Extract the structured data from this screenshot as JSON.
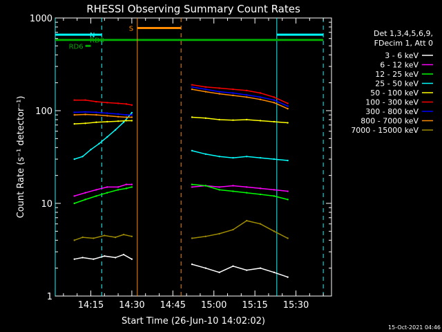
{
  "chart_data": {
    "type": "line",
    "title": "RHESSI Observing Summary Count Rates",
    "xlabel": "Start Time (26-Jun-10 14:02:02)",
    "ylabel": "Count Rate (s⁻¹ detector⁻¹)",
    "y_scale": "log",
    "ylim": [
      1,
      1000
    ],
    "xlim": [
      "14:02",
      "15:43"
    ],
    "x_ticks": [
      "14:15",
      "14:30",
      "14:45",
      "15:00",
      "15:15",
      "15:30"
    ],
    "y_ticks": [
      "1",
      "10",
      "100",
      "1000"
    ],
    "grid": false,
    "legend": {
      "position": "right",
      "header": [
        "Det 1,3,4,5,6,9,",
        "FDecim 1, Att 0"
      ]
    },
    "series": [
      {
        "name": "3 - 6 keV",
        "color": "#ffffff",
        "segments": [
          {
            "x": [
              "14:09",
              "14:12",
              "14:16",
              "14:20",
              "14:24",
              "14:27",
              "14:30"
            ],
            "y": [
              2.5,
              2.6,
              2.5,
              2.7,
              2.6,
              2.8,
              2.5
            ]
          },
          {
            "x": [
              "14:52",
              "14:57",
              "15:02",
              "15:07",
              "15:12",
              "15:17",
              "15:22",
              "15:27"
            ],
            "y": [
              2.2,
              2.0,
              1.8,
              2.1,
              1.9,
              2.0,
              1.8,
              1.6
            ]
          }
        ]
      },
      {
        "name": "6 - 12 keV",
        "color": "#ff00ff",
        "segments": [
          {
            "x": [
              "14:09",
              "14:13",
              "14:17",
              "14:21",
              "14:25",
              "14:28",
              "14:30"
            ],
            "y": [
              12,
              13,
              14,
              15,
              15,
              16,
              16
            ]
          },
          {
            "x": [
              "14:52",
              "14:57",
              "15:02",
              "15:07",
              "15:12",
              "15:17",
              "15:22",
              "15:27"
            ],
            "y": [
              15,
              15.5,
              15,
              15.5,
              15,
              14.5,
              14,
              13.5
            ]
          }
        ]
      },
      {
        "name": "12 - 25 keV",
        "color": "#00ff00",
        "segments": [
          {
            "x": [
              "14:09",
              "14:13",
              "14:17",
              "14:21",
              "14:25",
              "14:28",
              "14:30"
            ],
            "y": [
              10,
              11,
              12,
              13,
              14,
              14.5,
              15
            ]
          },
          {
            "x": [
              "14:52",
              "14:57",
              "15:02",
              "15:07",
              "15:12",
              "15:17",
              "15:22",
              "15:27"
            ],
            "y": [
              16,
              15.5,
              14,
              13.5,
              13,
              12.5,
              12,
              11
            ]
          }
        ]
      },
      {
        "name": "25 - 50 keV",
        "color": "#00ffff",
        "segments": [
          {
            "x": [
              "14:09",
              "14:12",
              "14:15",
              "14:18",
              "14:21",
              "14:24",
              "14:27",
              "14:30"
            ],
            "y": [
              30,
              32,
              38,
              44,
              52,
              62,
              75,
              95
            ]
          },
          {
            "x": [
              "14:52",
              "14:57",
              "15:02",
              "15:07",
              "15:12",
              "15:17",
              "15:22",
              "15:27"
            ],
            "y": [
              37,
              34,
              32,
              31,
              32,
              31,
              30,
              29
            ]
          }
        ]
      },
      {
        "name": "50 - 100 keV",
        "color": "#ffff00",
        "segments": [
          {
            "x": [
              "14:09",
              "14:13",
              "14:17",
              "14:21",
              "14:25",
              "14:28",
              "14:30"
            ],
            "y": [
              72,
              73,
              75,
              76,
              77,
              78,
              78
            ]
          },
          {
            "x": [
              "14:52",
              "14:57",
              "15:02",
              "15:07",
              "15:12",
              "15:17",
              "15:22",
              "15:27"
            ],
            "y": [
              85,
              83,
              80,
              79,
              80,
              78,
              76,
              74
            ]
          }
        ]
      },
      {
        "name": "100 - 300 keV",
        "color": "#ff0000",
        "segments": [
          {
            "x": [
              "14:09",
              "14:13",
              "14:17",
              "14:21",
              "14:25",
              "14:28",
              "14:30"
            ],
            "y": [
              130,
              130,
              125,
              122,
              120,
              118,
              115
            ]
          },
          {
            "x": [
              "14:52",
              "14:57",
              "15:02",
              "15:07",
              "15:12",
              "15:17",
              "15:22",
              "15:27"
            ],
            "y": [
              190,
              180,
              175,
              170,
              165,
              155,
              140,
              120
            ]
          }
        ]
      },
      {
        "name": "300 - 800 keV",
        "color": "#0000ff",
        "segments": [
          {
            "x": [
              "14:09",
              "14:13",
              "14:17",
              "14:21",
              "14:25",
              "14:28",
              "14:30"
            ],
            "y": [
              96,
              97,
              96,
              94,
              92,
              90,
              90
            ]
          },
          {
            "x": [
              "14:52",
              "14:57",
              "15:02",
              "15:07",
              "15:12",
              "15:17",
              "15:22",
              "15:27"
            ],
            "y": [
              180,
              170,
              160,
              155,
              148,
              140,
              130,
              112
            ]
          }
        ]
      },
      {
        "name": "800 - 7000 keV",
        "color": "#ff8c00",
        "segments": [
          {
            "x": [
              "14:09",
              "14:13",
              "14:17",
              "14:21",
              "14:25",
              "14:28",
              "14:30"
            ],
            "y": [
              90,
              91,
              90,
              88,
              86,
              85,
              85
            ]
          },
          {
            "x": [
              "14:52",
              "14:57",
              "15:02",
              "15:07",
              "15:12",
              "15:17",
              "15:22",
              "15:27"
            ],
            "y": [
              170,
              160,
              152,
              146,
              140,
              132,
              122,
              105
            ]
          }
        ]
      },
      {
        "name": "7000 - 15000 keV",
        "color": "#9e8c00",
        "segments": [
          {
            "x": [
              "14:09",
              "14:12",
              "14:16",
              "14:20",
              "14:24",
              "14:27",
              "14:30"
            ],
            "y": [
              4.0,
              4.3,
              4.2,
              4.5,
              4.3,
              4.6,
              4.4
            ]
          },
          {
            "x": [
              "14:52",
              "14:57",
              "15:02",
              "15:07",
              "15:12",
              "15:17",
              "15:22",
              "15:27"
            ],
            "y": [
              4.2,
              4.4,
              4.7,
              5.2,
              6.5,
              6.0,
              5.0,
              4.2
            ]
          }
        ]
      }
    ],
    "flags": [
      {
        "label": "N",
        "color": "#00ffff",
        "bars": [
          [
            "14:02",
            "14:19"
          ],
          [
            "15:23",
            "15:40"
          ]
        ],
        "y": 660,
        "markers": [
          "14:02",
          "14:19",
          "15:23",
          "15:40"
        ]
      },
      {
        "label": "RD0",
        "color": "#00aa00",
        "bars": [
          [
            "14:02",
            "15:40"
          ]
        ],
        "y": 580
      },
      {
        "label": "RD6",
        "color": "#00aa00",
        "bars": [
          [
            "14:13",
            "14:15"
          ]
        ],
        "y": 500
      },
      {
        "label": "S",
        "color": "#ff8c00",
        "bars": [
          [
            "14:32",
            "14:48"
          ]
        ],
        "y": 780,
        "markers": [
          "14:32",
          "14:48"
        ]
      }
    ],
    "footer": "15-Oct-2021 04:46"
  }
}
